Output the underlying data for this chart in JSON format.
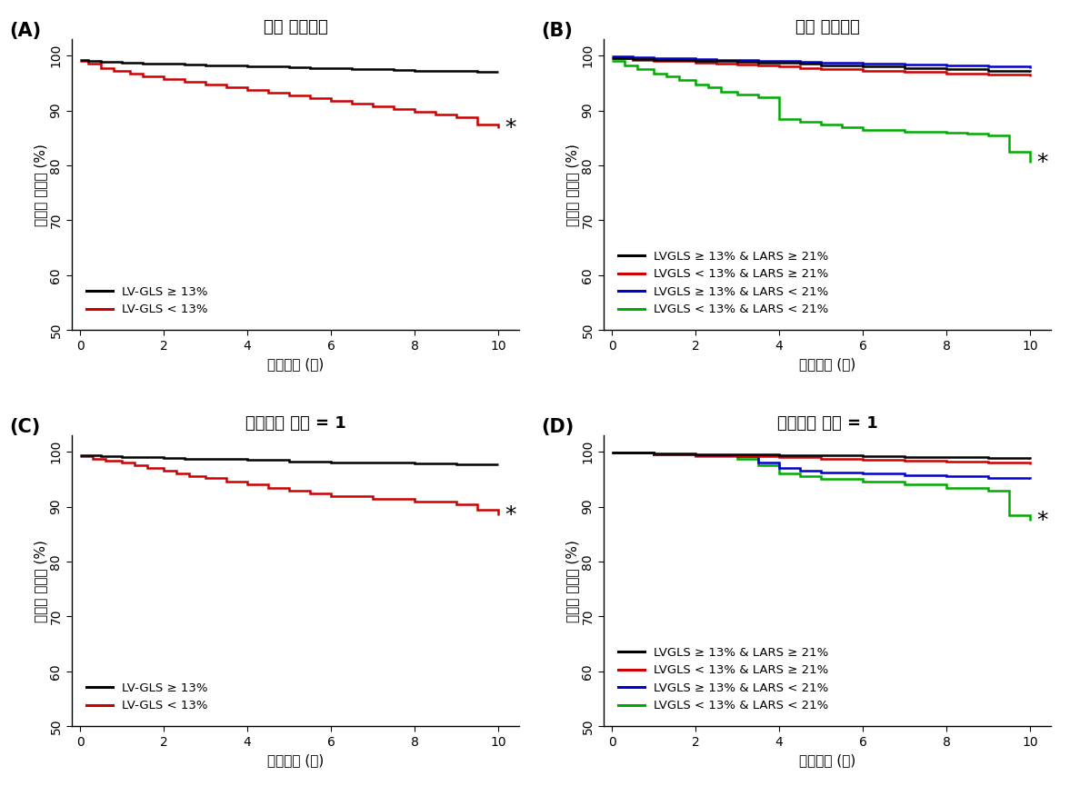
{
  "panel_labels": [
    "(A)",
    "(B)",
    "(C)",
    "(D)"
  ],
  "titles": [
    "전체 연구집단",
    "전체 연구집단",
    "위험인자 개수 = 1",
    "위험인자 개수 = 1"
  ],
  "ylabel": "무사건 생존율 (%)",
  "xlabel": "추적기간 (년)",
  "ylim": [
    50,
    103
  ],
  "xlim": [
    -0.2,
    10.5
  ],
  "yticks": [
    50,
    60,
    70,
    80,
    90,
    100
  ],
  "xticks": [
    0,
    2,
    4,
    6,
    8,
    10
  ],
  "panel_A": {
    "black": {
      "x": [
        0,
        0.2,
        0.5,
        1.0,
        1.5,
        2.0,
        2.5,
        3.0,
        3.5,
        4.0,
        4.5,
        5.0,
        5.5,
        6.0,
        6.5,
        7.0,
        7.5,
        8.0,
        9.0,
        9.5,
        10.0
      ],
      "y": [
        99.2,
        99.0,
        98.9,
        98.8,
        98.6,
        98.5,
        98.4,
        98.3,
        98.2,
        98.1,
        98.0,
        97.9,
        97.8,
        97.7,
        97.6,
        97.5,
        97.4,
        97.3,
        97.2,
        97.1,
        97.0
      ]
    },
    "red": {
      "x": [
        0,
        0.2,
        0.5,
        0.8,
        1.2,
        1.5,
        2.0,
        2.5,
        3.0,
        3.5,
        4.0,
        4.5,
        5.0,
        5.5,
        6.0,
        6.5,
        7.0,
        7.5,
        8.0,
        8.5,
        9.0,
        9.5,
        10.0
      ],
      "y": [
        99.0,
        98.5,
        97.8,
        97.2,
        96.8,
        96.3,
        95.8,
        95.3,
        94.8,
        94.3,
        93.8,
        93.3,
        92.8,
        92.3,
        91.8,
        91.3,
        90.8,
        90.3,
        89.8,
        89.3,
        88.8,
        87.5,
        86.8
      ]
    }
  },
  "panel_B": {
    "black": {
      "x": [
        0,
        0.5,
        1.0,
        1.5,
        2.0,
        2.5,
        3.0,
        3.5,
        4.0,
        4.5,
        5.0,
        6.0,
        7.0,
        8.0,
        9.0,
        10.0
      ],
      "y": [
        99.5,
        99.4,
        99.3,
        99.2,
        99.1,
        99.0,
        98.9,
        98.8,
        98.7,
        98.5,
        98.3,
        98.0,
        97.8,
        97.5,
        97.3,
        97.0
      ]
    },
    "red": {
      "x": [
        0,
        0.5,
        1.0,
        1.5,
        2.0,
        2.5,
        3.0,
        3.5,
        4.0,
        4.5,
        5.0,
        6.0,
        7.0,
        8.0,
        9.0,
        10.0
      ],
      "y": [
        99.5,
        99.3,
        99.1,
        99.0,
        98.8,
        98.6,
        98.4,
        98.2,
        98.0,
        97.8,
        97.6,
        97.3,
        97.0,
        96.8,
        96.5,
        96.2
      ]
    },
    "blue": {
      "x": [
        0,
        0.5,
        1.0,
        1.5,
        2.0,
        2.5,
        3.0,
        3.5,
        4.0,
        4.5,
        5.0,
        6.0,
        7.0,
        8.0,
        9.0,
        10.0
      ],
      "y": [
        99.8,
        99.7,
        99.6,
        99.5,
        99.4,
        99.3,
        99.2,
        99.1,
        99.0,
        98.9,
        98.8,
        98.6,
        98.4,
        98.2,
        98.0,
        97.8
      ]
    },
    "green": {
      "x": [
        0,
        0.3,
        0.6,
        1.0,
        1.3,
        1.6,
        2.0,
        2.3,
        2.6,
        3.0,
        3.5,
        4.0,
        4.5,
        5.0,
        5.5,
        6.0,
        7.0,
        8.0,
        8.5,
        9.0,
        9.5,
        10.0
      ],
      "y": [
        99.0,
        98.3,
        97.5,
        96.8,
        96.2,
        95.5,
        94.8,
        94.2,
        93.5,
        93.0,
        92.5,
        88.5,
        88.0,
        87.5,
        87.0,
        86.5,
        86.2,
        86.0,
        85.8,
        85.5,
        82.5,
        80.5
      ]
    }
  },
  "panel_C": {
    "black": {
      "x": [
        0,
        0.5,
        1.0,
        1.5,
        2.0,
        2.5,
        3.0,
        4.0,
        5.0,
        6.0,
        7.0,
        8.0,
        9.0,
        10.0
      ],
      "y": [
        99.3,
        99.2,
        99.1,
        99.0,
        98.9,
        98.8,
        98.7,
        98.5,
        98.3,
        98.1,
        98.0,
        97.9,
        97.8,
        97.7
      ]
    },
    "red": {
      "x": [
        0,
        0.3,
        0.6,
        1.0,
        1.3,
        1.6,
        2.0,
        2.3,
        2.6,
        3.0,
        3.5,
        4.0,
        4.5,
        5.0,
        5.5,
        6.0,
        7.0,
        8.0,
        9.0,
        9.5,
        10.0
      ],
      "y": [
        99.2,
        98.8,
        98.4,
        98.0,
        97.5,
        97.0,
        96.5,
        96.0,
        95.5,
        95.2,
        94.5,
        94.0,
        93.5,
        93.0,
        92.5,
        92.0,
        91.5,
        91.0,
        90.5,
        89.5,
        88.5
      ]
    }
  },
  "panel_D": {
    "black": {
      "x": [
        0,
        1,
        2,
        3,
        4,
        5,
        6,
        7,
        8,
        9,
        10
      ],
      "y": [
        99.8,
        99.7,
        99.6,
        99.5,
        99.4,
        99.3,
        99.2,
        99.1,
        99.0,
        98.9,
        98.8
      ]
    },
    "red": {
      "x": [
        0,
        1,
        2,
        3,
        4,
        5,
        6,
        7,
        8,
        9,
        10
      ],
      "y": [
        99.8,
        99.6,
        99.4,
        99.2,
        99.0,
        98.8,
        98.6,
        98.4,
        98.2,
        98.0,
        97.8
      ]
    },
    "blue": {
      "x": [
        0,
        1,
        2,
        3,
        3.5,
        4.0,
        4.5,
        5.0,
        6.0,
        7.0,
        8.0,
        9.0,
        10.0
      ],
      "y": [
        99.8,
        99.6,
        99.4,
        99.2,
        98.0,
        97.0,
        96.5,
        96.2,
        96.0,
        95.8,
        95.5,
        95.3,
        95.0
      ]
    },
    "green": {
      "x": [
        0,
        1,
        2,
        3,
        3.5,
        4.0,
        4.5,
        5.0,
        6.0,
        7.0,
        8.0,
        9.0,
        9.5,
        10.0
      ],
      "y": [
        99.8,
        99.5,
        99.2,
        98.8,
        97.5,
        96.0,
        95.5,
        95.0,
        94.5,
        94.0,
        93.5,
        93.0,
        88.5,
        87.5
      ]
    }
  },
  "legend_AB": [
    {
      "label": "LVGLS ≥ 13% & LARS ≥ 21%",
      "color": "#000000"
    },
    {
      "label": "LVGLS < 13% & LARS ≥ 21%",
      "color": "#cc0000"
    },
    {
      "label": "LVGLS ≥ 13% & LARS < 21%",
      "color": "#0000cc"
    },
    {
      "label": "LVGLS < 13% & LARS < 21%",
      "color": "#00aa00"
    }
  ],
  "legend_CD": [
    {
      "label": "LV-GLS ≥ 13%",
      "color": "#000000"
    },
    {
      "label": "LV-GLS < 13%",
      "color": "#cc0000"
    }
  ],
  "background_color": "#ffffff",
  "line_width": 1.8,
  "title_fontsize": 13,
  "label_fontsize": 11,
  "tick_fontsize": 10,
  "legend_fontsize": 9.5,
  "panel_label_fontsize": 15,
  "asterisk_fontsize": 18
}
